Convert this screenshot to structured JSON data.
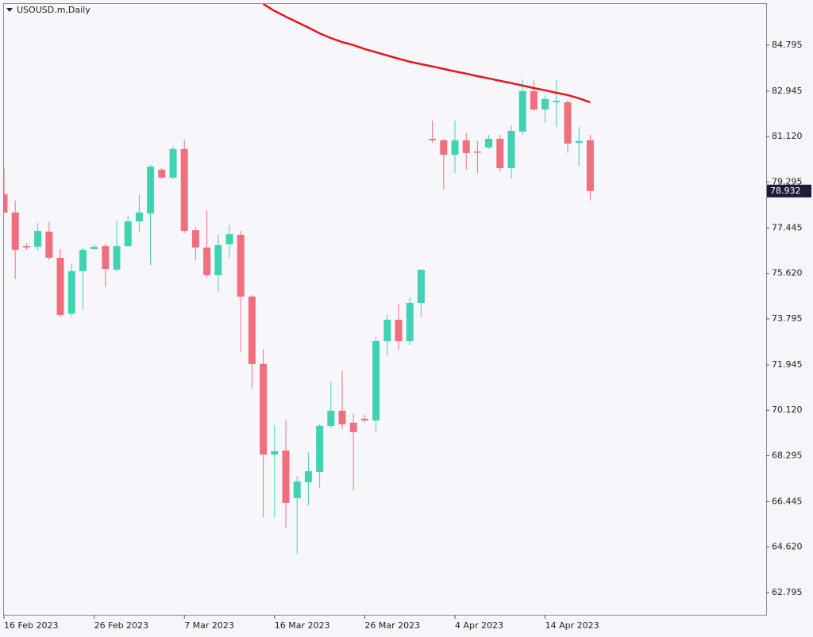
{
  "chart_data": {
    "type": "candlestick",
    "title": "USOUSD.m,Daily",
    "categories": [
      "16 Feb 2023",
      null,
      null,
      null,
      null,
      null,
      null,
      null,
      "26 Feb 2023",
      null,
      null,
      null,
      null,
      null,
      null,
      null,
      "7 Mar 2023",
      null,
      null,
      null,
      null,
      null,
      null,
      null,
      "16 Mar 2023",
      null,
      null,
      null,
      null,
      null,
      null,
      null,
      "26 Mar 2023",
      null,
      null,
      null,
      null,
      null,
      null,
      null,
      "4 Apr 2023",
      null,
      null,
      null,
      null,
      null,
      null,
      null,
      "14 Apr 2023",
      null,
      null,
      null,
      null
    ],
    "open": [
      78.8,
      78.07,
      76.72,
      76.69,
      77.3,
      76.25,
      74.0,
      75.71,
      76.6,
      76.72,
      75.77,
      76.72,
      77.71,
      78.03,
      79.79,
      79.47,
      80.62,
      77.36,
      76.66,
      75.55,
      76.79,
      77.17,
      74.69,
      71.98,
      68.34,
      68.5,
      66.59,
      67.23,
      67.64,
      69.49,
      70.1,
      69.62,
      69.78,
      69.71,
      72.9,
      73.76,
      72.9,
      74.43,
      81.03,
      80.97,
      80.39,
      80.97,
      80.52,
      80.68,
      81.03,
      79.85,
      81.32,
      82.95,
      82.21,
      82.5,
      82.5,
      80.87,
      80.97
    ],
    "high": [
      79.85,
      78.55,
      76.82,
      77.65,
      77.68,
      76.6,
      75.99,
      76.67,
      76.79,
      76.82,
      77.74,
      77.94,
      78.8,
      79.98,
      79.85,
      80.71,
      81.0,
      77.49,
      78.16,
      77.2,
      77.56,
      77.33,
      74.75,
      72.58,
      69.52,
      69.71,
      67.48,
      68.44,
      69.56,
      71.27,
      71.69,
      69.97,
      69.94,
      73.06,
      73.98,
      74.39,
      74.65,
      75.77,
      81.76,
      81.03,
      81.76,
      81.26,
      80.94,
      81.19,
      81.19,
      81.57,
      83.42,
      83.42,
      82.78,
      83.42,
      82.6,
      81.51,
      81.19
    ],
    "low": [
      78.07,
      75.39,
      76.57,
      76.54,
      76.15,
      73.86,
      73.89,
      74.14,
      76.6,
      75.07,
      75.71,
      76.72,
      77.3,
      75.96,
      79.44,
      79.41,
      77.24,
      76.15,
      75.45,
      74.88,
      76.25,
      72.46,
      70.99,
      65.82,
      65.82,
      65.38,
      64.36,
      66.3,
      67.0,
      69.39,
      69.36,
      66.91,
      69.65,
      69.2,
      72.3,
      72.55,
      72.74,
      73.86,
      80.87,
      78.99,
      79.66,
      79.79,
      79.66,
      80.62,
      79.72,
      79.44,
      81.19,
      82.15,
      81.67,
      81.51,
      80.46,
      79.92,
      78.55
    ],
    "close": [
      78.07,
      76.57,
      76.66,
      77.33,
      76.25,
      73.95,
      75.71,
      76.57,
      76.69,
      75.8,
      76.72,
      77.71,
      78.07,
      79.91,
      79.47,
      80.62,
      77.33,
      76.66,
      75.55,
      76.76,
      77.2,
      74.69,
      71.98,
      68.34,
      68.47,
      66.4,
      67.26,
      67.67,
      69.49,
      70.1,
      69.56,
      69.24,
      69.71,
      72.9,
      73.76,
      72.9,
      74.43,
      75.77,
      80.97,
      80.39,
      80.97,
      80.46,
      80.49,
      81.03,
      79.85,
      81.35,
      82.95,
      82.21,
      82.63,
      82.56,
      80.84,
      80.94,
      78.932
    ],
    "up_color": "#3fd3b4",
    "down_color": "#f16f7d",
    "overlay": {
      "color": "#e8141c",
      "values": [
        null,
        null,
        null,
        null,
        null,
        null,
        null,
        null,
        null,
        null,
        null,
        null,
        null,
        null,
        null,
        null,
        null,
        null,
        null,
        null,
        null,
        null,
        null,
        86.45,
        86.17,
        85.94,
        85.72,
        85.5,
        85.27,
        85.08,
        84.92,
        84.8,
        84.64,
        84.51,
        84.38,
        84.25,
        84.13,
        84.03,
        83.94,
        83.84,
        83.74,
        83.65,
        83.55,
        83.46,
        83.36,
        83.27,
        83.17,
        83.07,
        82.98,
        82.88,
        82.79,
        82.66,
        82.5
      ]
    },
    "last_price": 78.932,
    "ylim": [
      61.9,
      86.45
    ],
    "yticks": [
      62.795,
      {
        "value": 64.62,
        "label": "64.620"
      },
      66.445,
      68.295,
      {
        "value": 70.12,
        "label": "70.120"
      },
      71.945,
      73.795,
      {
        "value": 75.62,
        "label": "75.620"
      },
      77.445,
      79.295,
      {
        "value": 81.12,
        "label": "81.120"
      },
      82.945,
      84.795
    ]
  }
}
